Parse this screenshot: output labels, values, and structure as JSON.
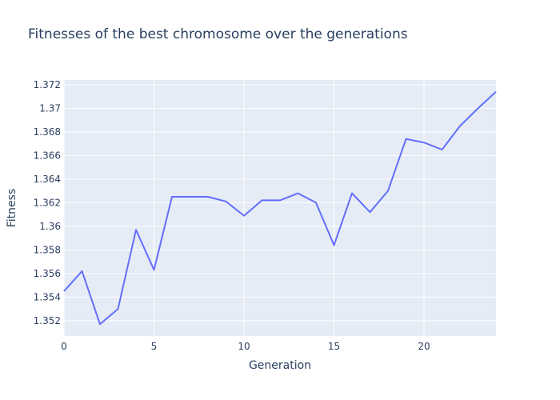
{
  "chart_data": {
    "type": "line",
    "title": "Fitnesses of the best chromosome over the generations",
    "xlabel": "Generation",
    "ylabel": "Fitness",
    "xlim": [
      0,
      24
    ],
    "ylim": [
      1.3507,
      1.3724
    ],
    "xticks": [
      0,
      5,
      10,
      15,
      20
    ],
    "yticks": [
      1.352,
      1.354,
      1.356,
      1.358,
      1.36,
      1.362,
      1.364,
      1.366,
      1.368,
      1.37,
      1.372
    ],
    "ytick_labels": [
      "1.352",
      "1.354",
      "1.356",
      "1.358",
      "1.36",
      "1.362",
      "1.364",
      "1.366",
      "1.368",
      "1.37",
      "1.372"
    ],
    "grid": true,
    "legend": "none",
    "colors": {
      "line": "#636efa",
      "plot_bg": "#e5ecf6",
      "grid": "#ffffff",
      "text": "#2a3f5f"
    },
    "series": [
      {
        "x": [
          0,
          1,
          2,
          3,
          4,
          5,
          6,
          7,
          8,
          9,
          10,
          11,
          12,
          13,
          14,
          15,
          16,
          17,
          18,
          19,
          20,
          21,
          22,
          23,
          24
        ],
        "values": [
          1.3545,
          1.3562,
          1.3517,
          1.353,
          1.3597,
          1.3563,
          1.3625,
          1.3625,
          1.3625,
          1.3621,
          1.3609,
          1.3622,
          1.3622,
          1.3628,
          1.362,
          1.3584,
          1.3628,
          1.3612,
          1.363,
          1.3674,
          1.3671,
          1.3665,
          1.3685,
          1.37,
          1.3714
        ]
      }
    ]
  }
}
